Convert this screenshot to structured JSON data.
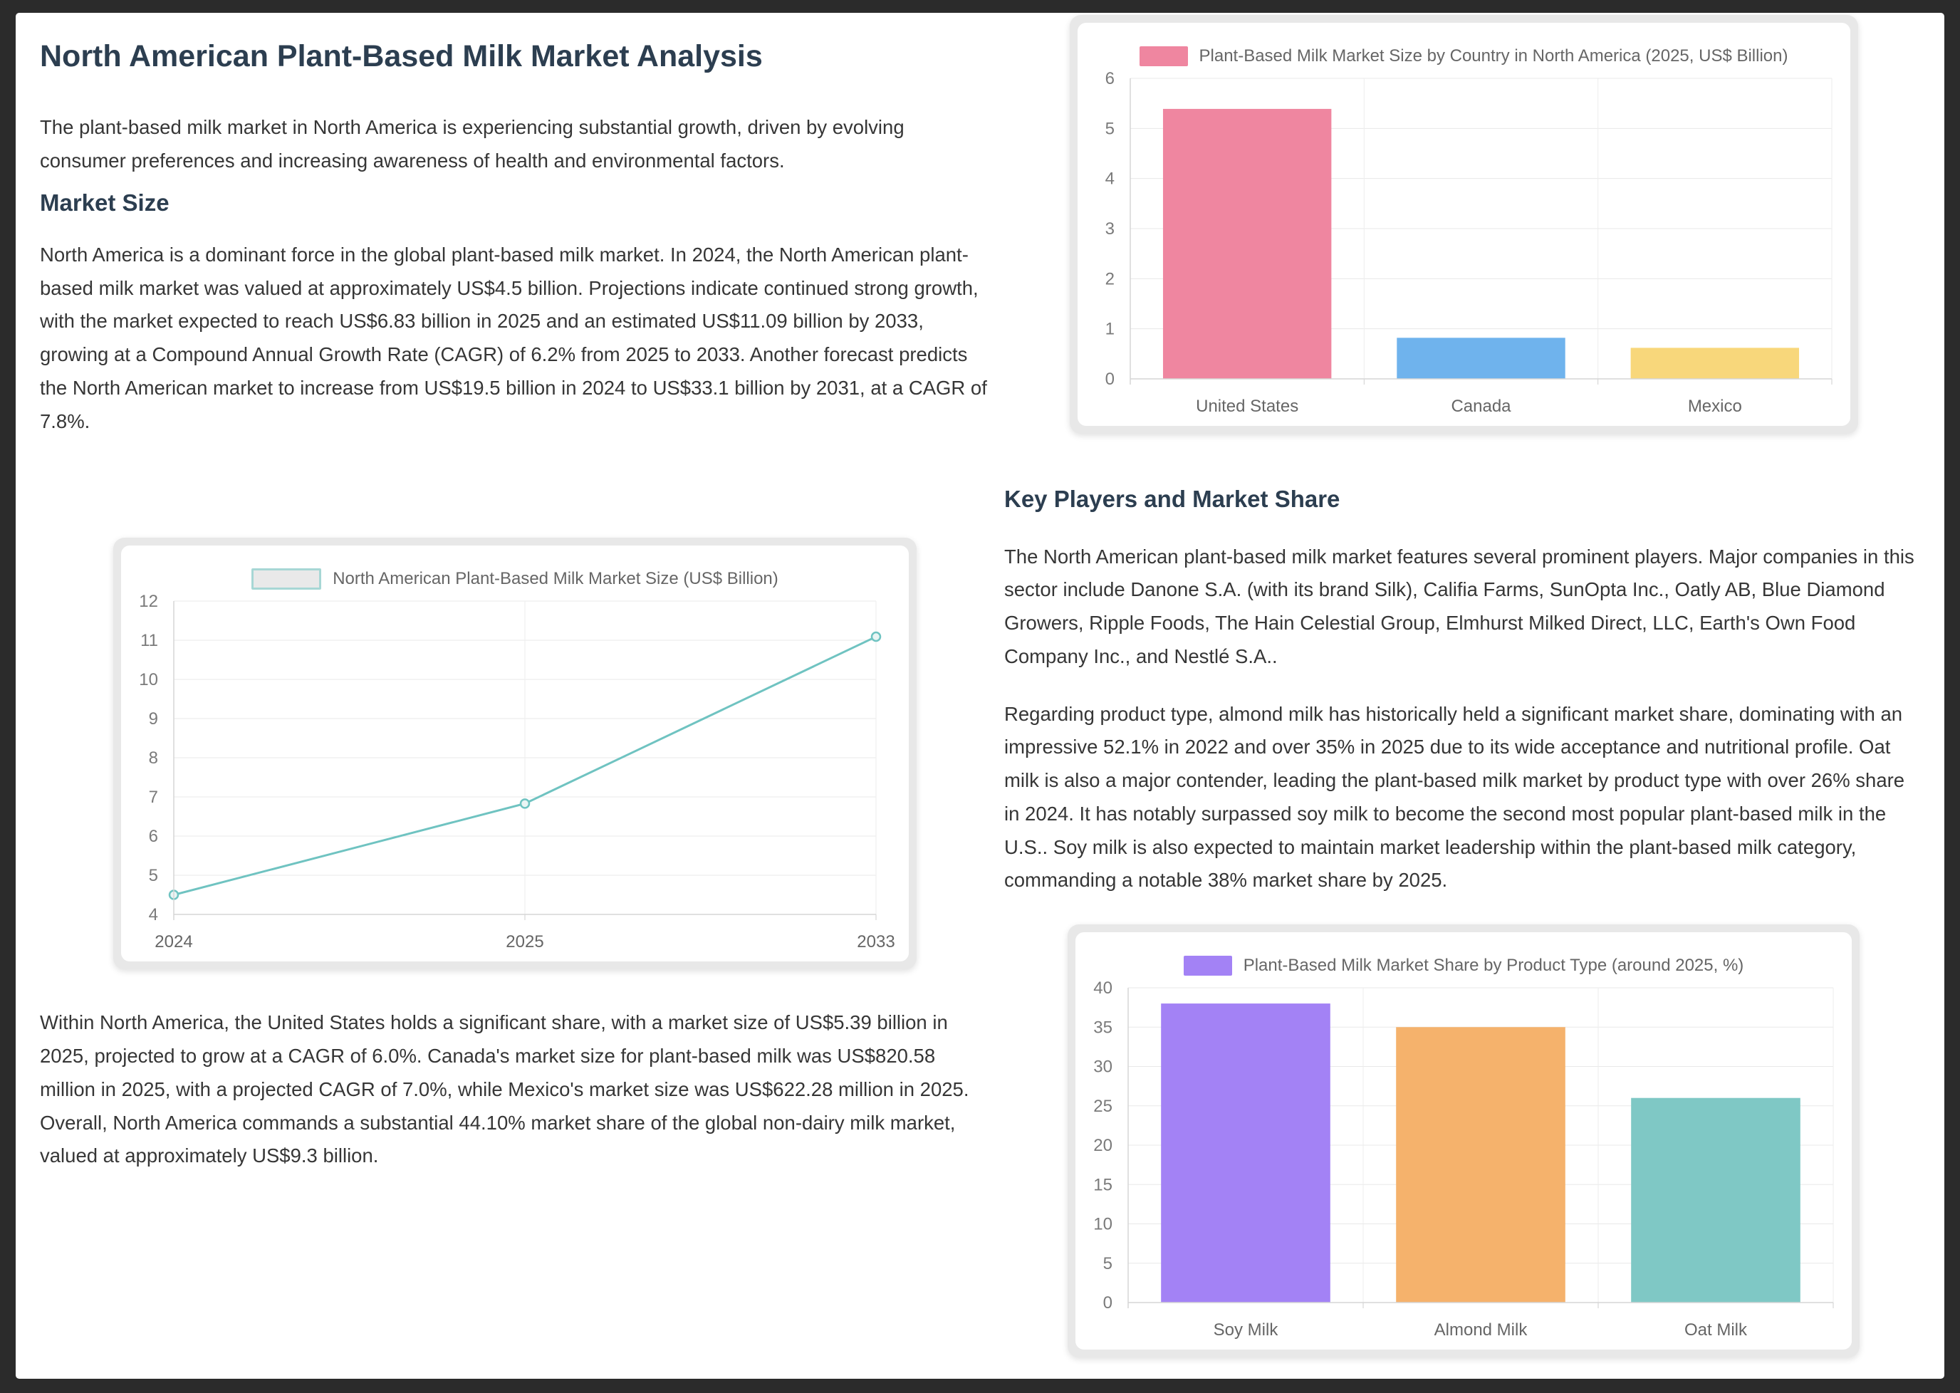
{
  "report": {
    "title": "North American Plant-Based Milk Market Analysis",
    "intro": "The plant-based milk market in North America is experiencing substantial growth, driven by evolving consumer preferences and increasing awareness of health and environmental factors.",
    "market_size": {
      "heading": "Market Size",
      "p1": "North America is a dominant force in the global plant-based milk market. In 2024, the North American plant-based milk market was valued at approximately US$4.5 billion. Projections indicate continued strong growth, with the market expected to reach US$6.83 billion in 2025 and an estimated US$11.09 billion by 2033, growing at a Compound Annual Growth Rate (CAGR) of 6.2% from 2025 to 2033. Another forecast predicts the North American market to increase from US$19.5 billion in 2024 to US$33.1 billion by 2031, at a CAGR of 7.8%.",
      "p2": "Within North America, the United States holds a significant share, with a market size of US$5.39 billion in 2025, projected to grow at a CAGR of 6.0%. Canada's market size for plant-based milk was US$820.58 million in 2025, with a projected CAGR of 7.0%, while Mexico's market size was US$622.28 million in 2025. Overall, North America commands a substantial 44.10% market share of the global non-dairy milk market, valued at approximately US$9.3 billion."
    },
    "key_players": {
      "heading": "Key Players and Market Share",
      "p1": "The North American plant-based milk market features several prominent players. Major companies in this sector include Danone S.A. (with its brand Silk), Califia Farms, SunOpta Inc., Oatly AB, Blue Diamond Growers, Ripple Foods, The Hain Celestial Group, Elmhurst Milked Direct, LLC, Earth's Own Food Company Inc., and Nestlé S.A..",
      "p2": "Regarding product type, almond milk has historically held a significant market share, dominating with an impressive 52.1% in 2022 and over 35% in 2025 due to its wide acceptance and nutritional profile. Oat milk is also a major contender, leading the plant-based milk market by product type with over 26% share in 2024. It has notably surpassed soy milk to become the second most popular plant-based milk in the U.S.. Soy milk is also expected to maintain market leadership within the plant-based milk category, commanding a notable 38% market share by 2025."
    }
  },
  "colors": {
    "page_background": "#2b2b2b",
    "card_background": "#ffffff",
    "heading_text": "#2c3e50",
    "body_text": "#363636",
    "chart_frame": "#e8e8e8",
    "grid_line": "#e8e8e8",
    "axis_label": "#7a7a7a"
  },
  "chart_data": [
    {
      "type": "line",
      "title": "North American Plant-Based Milk Market Size (US$ Billion)",
      "categories": [
        "2024",
        "2025",
        "2033"
      ],
      "values": [
        4.5,
        6.83,
        11.09
      ],
      "xlabel": "",
      "ylabel": "",
      "ylim": [
        4,
        12
      ],
      "ytick_step": 1,
      "grid": true,
      "legend_position": "top",
      "line_color": "#6fc3c1",
      "marker_fill": "#eaf5f4",
      "legend_swatch_fill": "#e9e9e9",
      "legend_swatch_border": "#a7d7d5"
    },
    {
      "type": "bar",
      "title": "Plant-Based Milk Market Size by Country in North America (2025, US$ Billion)",
      "categories": [
        "United States",
        "Canada",
        "Mexico"
      ],
      "values": [
        5.39,
        0.82,
        0.62
      ],
      "xlabel": "",
      "ylabel": "",
      "ylim": [
        0,
        6
      ],
      "ytick_step": 1,
      "grid": true,
      "legend_position": "top",
      "colors": [
        "#ef86a0",
        "#6fb3ed",
        "#f8d77b"
      ],
      "legend_swatch_fill": "#ef86a0"
    },
    {
      "type": "bar",
      "title": "Plant-Based Milk Market Share by Product Type (around 2025, %)",
      "categories": [
        "Soy Milk",
        "Almond Milk",
        "Oat Milk"
      ],
      "values": [
        38,
        35,
        26
      ],
      "xlabel": "",
      "ylabel": "",
      "ylim": [
        0,
        40
      ],
      "ytick_step": 5,
      "grid": true,
      "legend_position": "top",
      "colors": [
        "#a382f5",
        "#f5b26c",
        "#7fc8c5"
      ],
      "legend_swatch_fill": "#a382f5"
    }
  ]
}
